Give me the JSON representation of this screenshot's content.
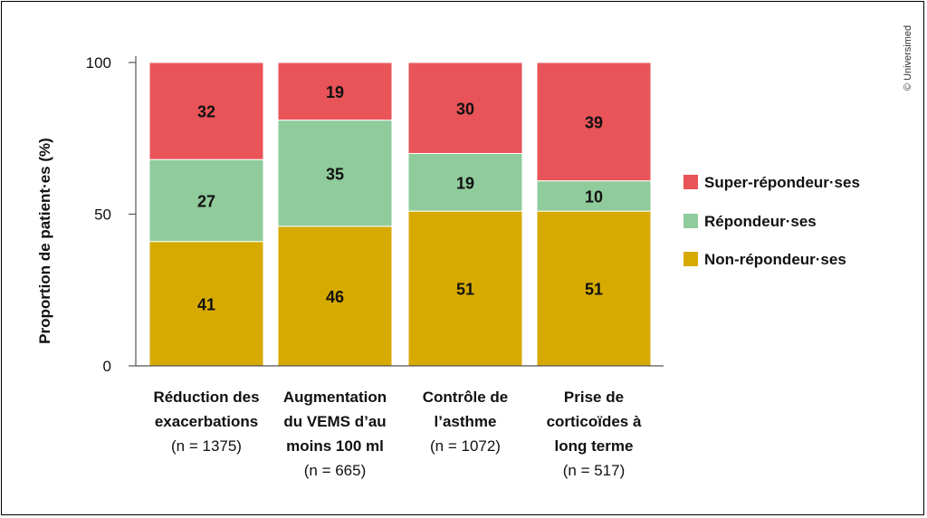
{
  "chart_data": {
    "type": "bar",
    "stacked": true,
    "ylabel": "Proportion de patient·es (%)",
    "ylim": [
      0,
      100
    ],
    "yticks": [
      "0",
      "50",
      "100"
    ],
    "categories": [
      {
        "lines": [
          "Réduction des",
          "exacerbations"
        ],
        "n": "(n = 1375)"
      },
      {
        "lines": [
          "Augmentation",
          "du VEMS d’au",
          "moins 100 ml"
        ],
        "n": "(n = 665)"
      },
      {
        "lines": [
          "Contrôle de",
          "l’asthme"
        ],
        "n": "(n = 1072)"
      },
      {
        "lines": [
          "Prise de",
          "corticoïdes à",
          "long terme"
        ],
        "n": "(n = 517)"
      }
    ],
    "series": [
      {
        "name": "Non-répondeur·ses",
        "color": "#d6aa00",
        "values": [
          41,
          46,
          51,
          51
        ]
      },
      {
        "name": "Répondeur·ses",
        "color": "#8fcb9b",
        "values": [
          27,
          35,
          19,
          10
        ]
      },
      {
        "name": "Super-répondeur·ses",
        "color": "#e85458",
        "values": [
          32,
          19,
          30,
          39
        ]
      }
    ],
    "legend": {
      "position": "right",
      "order": [
        "Super-répondeur·ses",
        "Répondeur·ses",
        "Non-répondeur·ses"
      ]
    },
    "grid": false
  },
  "credit": "© Universimed"
}
